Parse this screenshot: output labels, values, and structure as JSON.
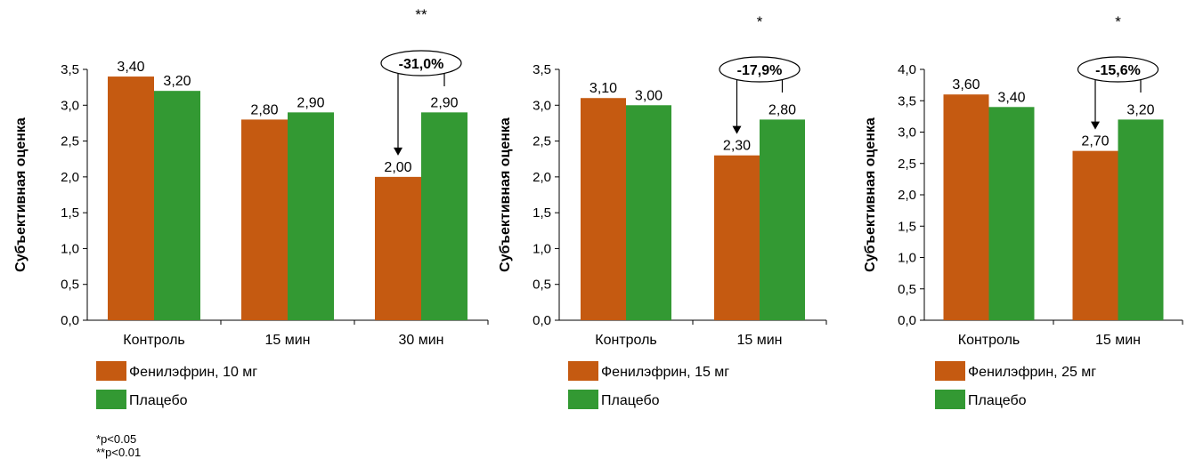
{
  "colors": {
    "phenylephrine": "#C55A11",
    "placebo": "#339933",
    "axis": "#000000"
  },
  "footnotes": [
    "*p<0.05",
    "**p<0.01"
  ],
  "chart_data": [
    {
      "type": "bar",
      "categories": [
        "Контроль",
        "15 мин",
        "30 мин"
      ],
      "series": [
        {
          "name": "Фенилэфрин, 10 мг",
          "values": [
            3.4,
            2.8,
            2.0
          ],
          "labels": [
            "3,40",
            "2,80",
            "2,00"
          ]
        },
        {
          "name": "Плацебо",
          "values": [
            3.2,
            2.9,
            2.9
          ],
          "labels": [
            "3,20",
            "2,90",
            "2,90"
          ]
        }
      ],
      "ylabel": "Субъективная оценка",
      "ylim": [
        0,
        3.5
      ],
      "yticks": [
        "0,0",
        "0,5",
        "1,0",
        "1,5",
        "2,0",
        "2,5",
        "3,0",
        "3,5"
      ],
      "significance": "**",
      "change": {
        "category_index": 2,
        "label": "-31,0%"
      }
    },
    {
      "type": "bar",
      "categories": [
        "Контроль",
        "15 мин"
      ],
      "series": [
        {
          "name": "Фенилэфрин, 15 мг",
          "values": [
            3.1,
            2.3
          ],
          "labels": [
            "3,10",
            "2,30"
          ]
        },
        {
          "name": "Плацебо",
          "values": [
            3.0,
            2.8
          ],
          "labels": [
            "3,00",
            "2,80"
          ]
        }
      ],
      "ylabel": "Субъективная оценка",
      "ylim": [
        0,
        3.5
      ],
      "yticks": [
        "0,0",
        "0,5",
        "1,0",
        "1,5",
        "2,0",
        "2,5",
        "3,0",
        "3,5"
      ],
      "significance": "*",
      "change": {
        "category_index": 1,
        "label": "-17,9%"
      }
    },
    {
      "type": "bar",
      "categories": [
        "Контроль",
        "15 мин"
      ],
      "series": [
        {
          "name": "Фенилэфрин, 25 мг",
          "values": [
            3.6,
            2.7
          ],
          "labels": [
            "3,60",
            "2,70"
          ]
        },
        {
          "name": "Плацебо",
          "values": [
            3.4,
            3.2
          ],
          "labels": [
            "3,40",
            "3,20"
          ]
        }
      ],
      "ylabel": "Субъективная оценка",
      "ylim": [
        0,
        4.0
      ],
      "yticks": [
        "0,0",
        "0,5",
        "1,0",
        "1,5",
        "2,0",
        "2,5",
        "3,0",
        "3,5",
        "4,0"
      ],
      "significance": "*",
      "change": {
        "category_index": 1,
        "label": "-15,6%"
      }
    }
  ]
}
